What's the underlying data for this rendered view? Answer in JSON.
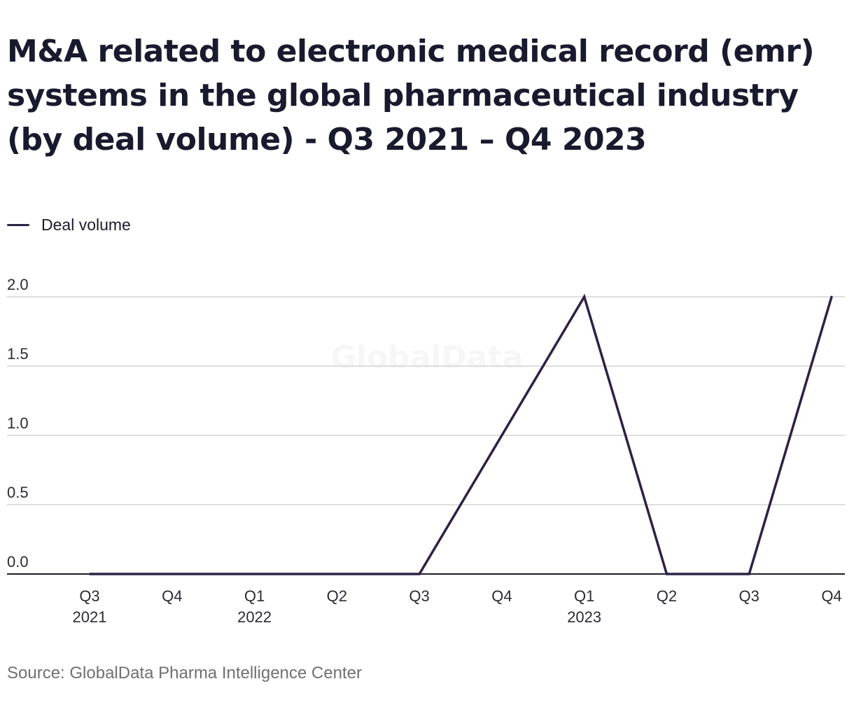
{
  "chart_data": {
    "type": "line",
    "title": "M&A related to electronic medical record (emr) systems in the global pharmaceutical industry (by deal volume) - Q3 2021 – Q4 2023",
    "xlabel": "",
    "ylabel": "",
    "categories": [
      "Q3 2021",
      "Q4 2021",
      "Q1 2022",
      "Q2 2022",
      "Q3 2022",
      "Q4 2022",
      "Q1 2023",
      "Q2 2023",
      "Q3 2023",
      "Q4 2023"
    ],
    "x_ticks": [
      {
        "quarter": "Q3",
        "year": "2021"
      },
      {
        "quarter": "Q4",
        "year": ""
      },
      {
        "quarter": "Q1",
        "year": "2022"
      },
      {
        "quarter": "Q2",
        "year": ""
      },
      {
        "quarter": "Q3",
        "year": ""
      },
      {
        "quarter": "Q4",
        "year": ""
      },
      {
        "quarter": "Q1",
        "year": "2023"
      },
      {
        "quarter": "Q2",
        "year": ""
      },
      {
        "quarter": "Q3",
        "year": ""
      },
      {
        "quarter": "Q4",
        "year": ""
      }
    ],
    "series": [
      {
        "name": "Deal volume",
        "color": "#2e2145",
        "values": [
          0,
          0,
          0,
          0,
          0,
          1,
          2,
          0,
          0,
          2
        ]
      }
    ],
    "ylim": [
      0,
      2
    ],
    "y_ticks": [
      "0.0",
      "0.5",
      "1.0",
      "1.5",
      "2.0"
    ],
    "grid": true,
    "legend_position": "top-left",
    "watermark": "GlobalData",
    "source": "Source: GlobalData Pharma Intelligence Center"
  }
}
